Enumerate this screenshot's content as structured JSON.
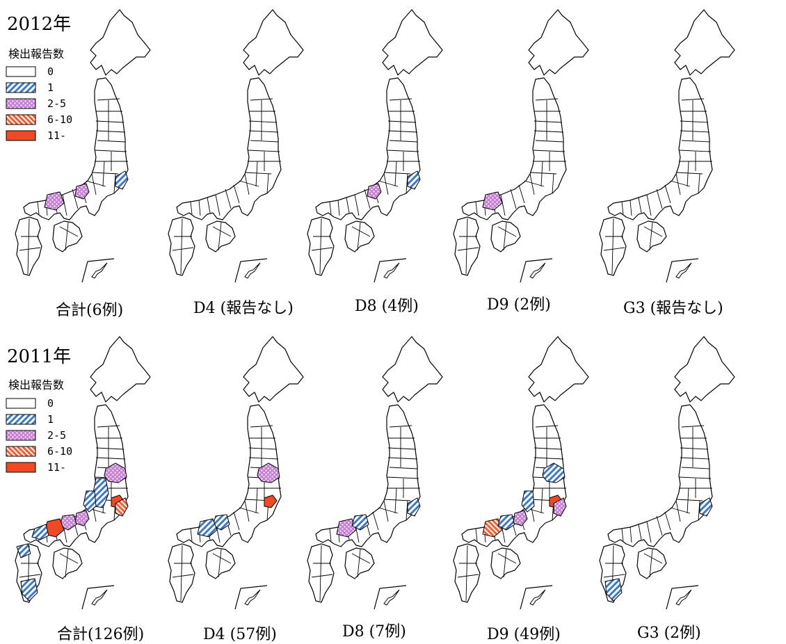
{
  "legend_title": "検出報告数",
  "legend": [
    {
      "label": "0",
      "fill": "none"
    },
    {
      "label": "1",
      "fill": "blue-hatch",
      "color": "#3a78c8"
    },
    {
      "label": "2-5",
      "fill": "pink-dots",
      "color": "#c77fd6"
    },
    {
      "label": "6-10",
      "fill": "red-hatch",
      "color": "#ff5a2e"
    },
    {
      "label": "11-",
      "fill": "red-solid",
      "color": "#f04a24"
    }
  ],
  "panels": [
    {
      "year": "2012年",
      "maps": [
        {
          "caption": "合計(6例)",
          "highlights": [
            {
              "region": "hiroshima",
              "fill": "pink-dots"
            },
            {
              "region": "osaka",
              "fill": "pink-dots"
            },
            {
              "region": "kanagawa",
              "fill": "blue-hatch"
            }
          ]
        },
        {
          "caption": "D4 (報告なし)",
          "highlights": []
        },
        {
          "caption": "D8  (4例)",
          "highlights": [
            {
              "region": "osaka",
              "fill": "pink-dots"
            },
            {
              "region": "kanagawa",
              "fill": "blue-hatch"
            }
          ]
        },
        {
          "caption": "D9 (2例)",
          "highlights": [
            {
              "region": "hiroshima",
              "fill": "pink-dots"
            }
          ]
        },
        {
          "caption": "G3 (報告なし)",
          "highlights": []
        }
      ]
    },
    {
      "year": "2011年",
      "maps": [
        {
          "caption": "合計(126例)",
          "highlights": [
            {
              "region": "niigata",
              "fill": "pink-dots"
            },
            {
              "region": "nagano",
              "fill": "blue-hatch"
            },
            {
              "region": "gifu",
              "fill": "blue-hatch"
            },
            {
              "region": "tokyo",
              "fill": "red-solid"
            },
            {
              "region": "kanagawa",
              "fill": "red-hatch"
            },
            {
              "region": "osaka",
              "fill": "pink-dots"
            },
            {
              "region": "okayama",
              "fill": "pink-dots"
            },
            {
              "region": "hiroshima",
              "fill": "red-solid"
            },
            {
              "region": "shimane",
              "fill": "blue-hatch"
            },
            {
              "region": "fukuoka",
              "fill": "blue-hatch"
            },
            {
              "region": "kagoshima",
              "fill": "blue-hatch"
            }
          ]
        },
        {
          "caption": "D4 (57例)",
          "highlights": [
            {
              "region": "niigata",
              "fill": "pink-dots"
            },
            {
              "region": "tokyo",
              "fill": "red-solid"
            },
            {
              "region": "okayama",
              "fill": "blue-hatch"
            },
            {
              "region": "hiroshima",
              "fill": "blue-hatch"
            }
          ]
        },
        {
          "caption": "D8  (7例)",
          "highlights": [
            {
              "region": "hiroshima",
              "fill": "pink-dots"
            },
            {
              "region": "okayama",
              "fill": "blue-hatch"
            },
            {
              "region": "kanagawa",
              "fill": "blue-hatch"
            }
          ]
        },
        {
          "caption": "D9 (49例)",
          "highlights": [
            {
              "region": "niigata",
              "fill": "blue-hatch"
            },
            {
              "region": "hiroshima",
              "fill": "red-hatch"
            },
            {
              "region": "okayama",
              "fill": "blue-hatch"
            },
            {
              "region": "osaka",
              "fill": "pink-dots"
            },
            {
              "region": "gifu",
              "fill": "blue-hatch"
            },
            {
              "region": "tokyo",
              "fill": "red-solid"
            },
            {
              "region": "kanagawa",
              "fill": "pink-dots"
            }
          ]
        },
        {
          "caption": "G3 (2例)",
          "highlights": [
            {
              "region": "kanagawa",
              "fill": "blue-hatch"
            },
            {
              "region": "kagoshima",
              "fill": "blue-hatch"
            }
          ]
        }
      ]
    }
  ]
}
